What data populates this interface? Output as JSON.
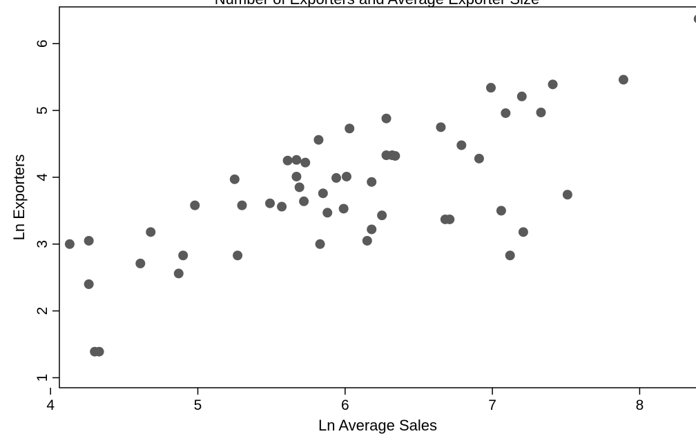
{
  "chart_data": {
    "type": "scatter",
    "title": "Number of Exporters and Average Exporter Size",
    "xlabel": "Ln Average Sales",
    "ylabel": "Ln Exporters",
    "xlim": [
      4.06,
      8.42
    ],
    "ylim": [
      0.85,
      6.55
    ],
    "x_ticks": [
      4,
      5,
      6,
      7,
      8
    ],
    "y_ticks": [
      1,
      2,
      3,
      4,
      5,
      6
    ],
    "grid": false,
    "legend": "none",
    "marker_color": "#5a5a5a",
    "points": [
      {
        "x": 4.13,
        "y": 3.0
      },
      {
        "x": 4.26,
        "y": 3.05
      },
      {
        "x": 4.26,
        "y": 2.4
      },
      {
        "x": 4.3,
        "y": 1.39
      },
      {
        "x": 4.33,
        "y": 1.39
      },
      {
        "x": 4.61,
        "y": 2.71
      },
      {
        "x": 4.68,
        "y": 3.18
      },
      {
        "x": 4.87,
        "y": 2.56
      },
      {
        "x": 4.9,
        "y": 2.83
      },
      {
        "x": 4.98,
        "y": 3.58
      },
      {
        "x": 5.25,
        "y": 3.97
      },
      {
        "x": 5.27,
        "y": 2.83
      },
      {
        "x": 5.3,
        "y": 3.58
      },
      {
        "x": 5.49,
        "y": 3.61
      },
      {
        "x": 5.57,
        "y": 3.56
      },
      {
        "x": 5.61,
        "y": 4.25
      },
      {
        "x": 5.67,
        "y": 4.26
      },
      {
        "x": 5.67,
        "y": 4.01
      },
      {
        "x": 5.69,
        "y": 3.85
      },
      {
        "x": 5.72,
        "y": 3.64
      },
      {
        "x": 5.73,
        "y": 4.22
      },
      {
        "x": 5.82,
        "y": 4.56
      },
      {
        "x": 5.83,
        "y": 3.0
      },
      {
        "x": 5.85,
        "y": 3.76
      },
      {
        "x": 5.88,
        "y": 3.47
      },
      {
        "x": 5.94,
        "y": 3.99
      },
      {
        "x": 5.99,
        "y": 3.53
      },
      {
        "x": 6.01,
        "y": 4.01
      },
      {
        "x": 6.03,
        "y": 4.73
      },
      {
        "x": 6.15,
        "y": 3.05
      },
      {
        "x": 6.18,
        "y": 3.22
      },
      {
        "x": 6.18,
        "y": 3.93
      },
      {
        "x": 6.25,
        "y": 3.43
      },
      {
        "x": 6.28,
        "y": 4.88
      },
      {
        "x": 6.28,
        "y": 4.33
      },
      {
        "x": 6.32,
        "y": 4.33
      },
      {
        "x": 6.34,
        "y": 4.32
      },
      {
        "x": 6.65,
        "y": 4.75
      },
      {
        "x": 6.68,
        "y": 3.37
      },
      {
        "x": 6.71,
        "y": 3.37
      },
      {
        "x": 6.79,
        "y": 4.48
      },
      {
        "x": 6.91,
        "y": 4.28
      },
      {
        "x": 6.99,
        "y": 5.34
      },
      {
        "x": 7.06,
        "y": 3.5
      },
      {
        "x": 7.09,
        "y": 4.96
      },
      {
        "x": 7.12,
        "y": 2.83
      },
      {
        "x": 7.2,
        "y": 5.21
      },
      {
        "x": 7.21,
        "y": 3.18
      },
      {
        "x": 7.33,
        "y": 4.97
      },
      {
        "x": 7.41,
        "y": 5.39
      },
      {
        "x": 7.51,
        "y": 3.74
      },
      {
        "x": 7.89,
        "y": 5.46
      },
      {
        "x": 8.4,
        "y": 6.37
      }
    ]
  }
}
